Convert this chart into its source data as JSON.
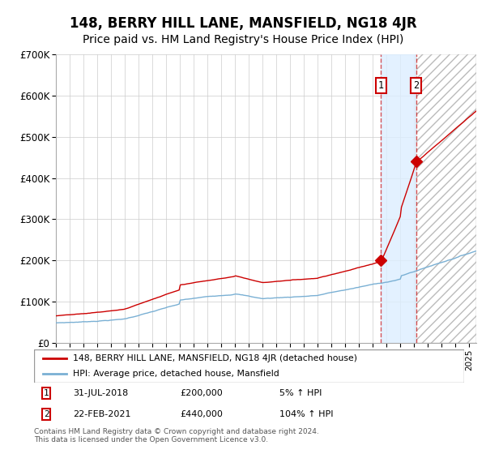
{
  "title": "148, BERRY HILL LANE, MANSFIELD, NG18 4JR",
  "subtitle": "Price paid vs. HM Land Registry's House Price Index (HPI)",
  "title_fontsize": 12,
  "subtitle_fontsize": 10,
  "ylim": [
    0,
    700000
  ],
  "yticks": [
    0,
    100000,
    200000,
    300000,
    400000,
    500000,
    600000,
    700000
  ],
  "ytick_labels": [
    "£0",
    "£100K",
    "£200K",
    "£300K",
    "£400K",
    "£500K",
    "£600K",
    "£700K"
  ],
  "year_start": 1995,
  "year_end": 2025,
  "hpi_color": "#7ab0d4",
  "price_color": "#cc0000",
  "sale1_year": 2018.58,
  "sale1_value": 200000,
  "sale2_year": 2021.14,
  "sale2_value": 440000,
  "shade_color": "#ddeeff",
  "hatch_color": "#e8e8e8",
  "grid_color": "#cccccc",
  "background_color": "#ffffff",
  "footer_text": "Contains HM Land Registry data © Crown copyright and database right 2024.\nThis data is licensed under the Open Government Licence v3.0."
}
